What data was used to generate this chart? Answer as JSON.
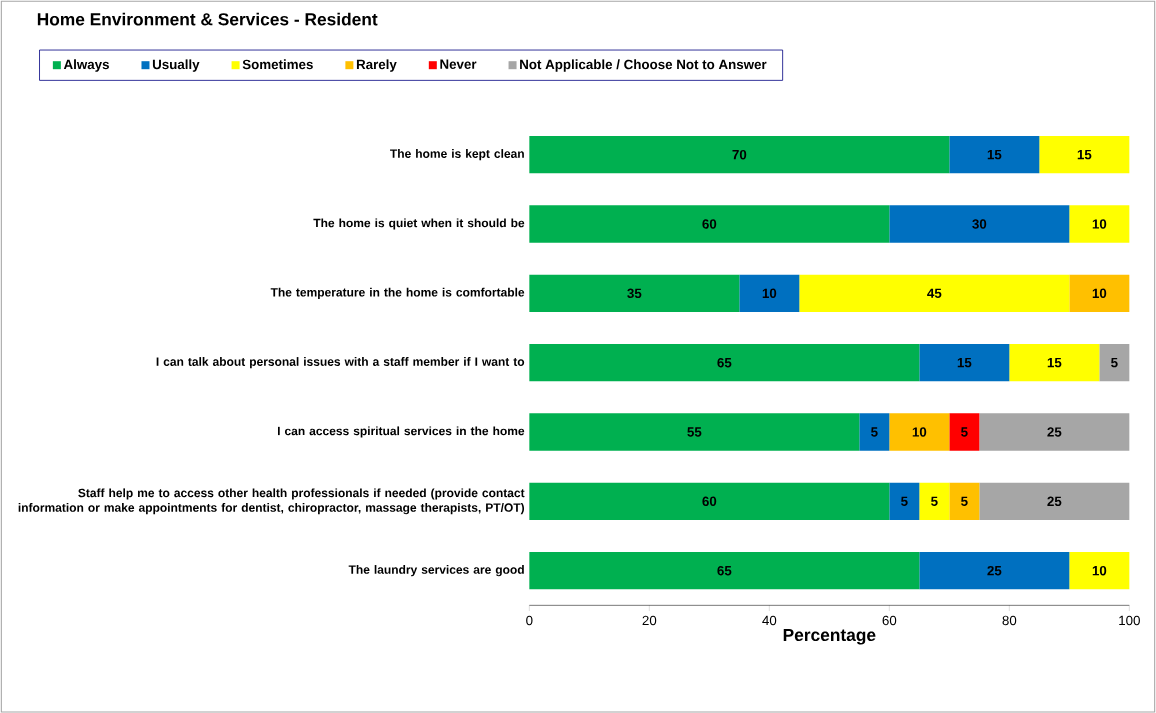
{
  "chart_data": {
    "type": "bar",
    "orientation": "horizontal",
    "stacked": true,
    "title": "Home Environment & Services - Resident",
    "xlabel": "Percentage",
    "categories": [
      "The home is kept clean",
      "The home is quiet when it should be",
      "The temperature in the home is comfortable",
      "I can talk about personal issues with a staff member if I want to",
      "I can access spiritual services in the home",
      "Staff help me to access other health professionals if needed (provide contact information or make appointments for dentist, chiropractor, massage therapists, PT/OT)",
      "The laundry services are good"
    ],
    "series": [
      {
        "name": "Always",
        "color": "#00b050",
        "values": [
          70,
          60,
          35,
          65,
          55,
          60,
          65
        ]
      },
      {
        "name": "Usually",
        "color": "#0070c0",
        "values": [
          15,
          30,
          10,
          15,
          5,
          5,
          25
        ]
      },
      {
        "name": "Sometimes",
        "color": "#ffff00",
        "values": [
          15,
          10,
          45,
          15,
          null,
          5,
          10
        ]
      },
      {
        "name": "Rarely",
        "color": "#ffc000",
        "values": [
          null,
          null,
          10,
          null,
          10,
          5,
          null
        ]
      },
      {
        "name": "Never",
        "color": "#ff0000",
        "values": [
          null,
          null,
          null,
          null,
          5,
          null,
          null
        ]
      },
      {
        "name": "Not Applicable / Choose Not to Answer",
        "color": "#a6a6a6",
        "values": [
          null,
          null,
          null,
          5,
          25,
          25,
          null
        ]
      }
    ],
    "xlim": [
      0,
      100
    ],
    "xticks": [
      0,
      20,
      40,
      60,
      80,
      100
    ],
    "data_labels": true,
    "legend": "top",
    "grid": false
  }
}
